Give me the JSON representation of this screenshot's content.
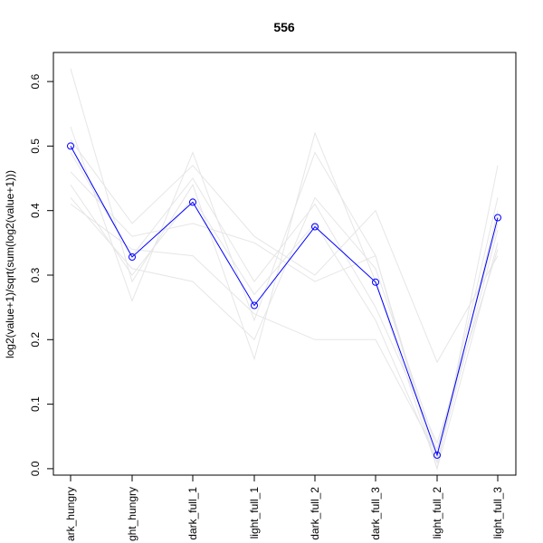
{
  "chart_data": {
    "type": "line",
    "title": "556",
    "xlabel": "",
    "ylabel": "log2(value+1)/sqrt(sum(log2(value+1)))",
    "categories": [
      "dark_hungry",
      "light_hungry",
      "dark_full_1",
      "light_full_1",
      "dark_full_2",
      "dark_full_3",
      "light_full_2",
      "light_full_3"
    ],
    "category_labels_shown": [
      "ark_hungry",
      "ght_hungry",
      "dark_full_1",
      "light_full_1",
      "dark_full_2",
      "dark_full_3",
      "light_full_2",
      "light_full_3"
    ],
    "ylim": [
      -0.01,
      0.645
    ],
    "yticks": [
      0.0,
      0.1,
      0.2,
      0.3,
      0.4,
      0.5,
      0.6
    ],
    "ytick_labels": [
      "0.0",
      "0.1",
      "0.2",
      "0.3",
      "0.4",
      "0.5",
      "0.6"
    ],
    "grid": false,
    "legend": "none",
    "highlight_series": {
      "values": [
        0.5,
        0.328,
        0.413,
        0.253,
        0.375,
        0.289,
        0.021,
        0.389
      ],
      "color": "#0000ff",
      "marker": "open-circle"
    },
    "background_series_color": "#e6e6e6",
    "background_series": [
      {
        "values": [
          0.62,
          0.29,
          0.44,
          0.17,
          0.52,
          0.29,
          0.0,
          0.47
        ]
      },
      {
        "values": [
          0.53,
          0.26,
          0.49,
          0.23,
          0.49,
          0.33,
          0.01,
          0.4
        ]
      },
      {
        "values": [
          0.51,
          0.38,
          0.47,
          0.36,
          0.3,
          0.4,
          0.165,
          0.33
        ]
      },
      {
        "values": [
          0.42,
          0.31,
          0.29,
          0.2,
          0.42,
          0.31,
          0.03,
          0.38
        ]
      },
      {
        "values": [
          0.46,
          0.36,
          0.38,
          0.35,
          0.29,
          0.33,
          0.0,
          0.35
        ]
      },
      {
        "values": [
          0.41,
          0.34,
          0.33,
          0.24,
          0.2,
          0.2,
          0.02,
          0.42
        ]
      },
      {
        "values": [
          0.49,
          0.33,
          0.45,
          0.29,
          0.41,
          0.25,
          0.04,
          0.34
        ]
      },
      {
        "values": [
          0.44,
          0.3,
          0.42,
          0.27,
          0.38,
          0.23,
          0.01,
          0.37
        ]
      }
    ]
  }
}
